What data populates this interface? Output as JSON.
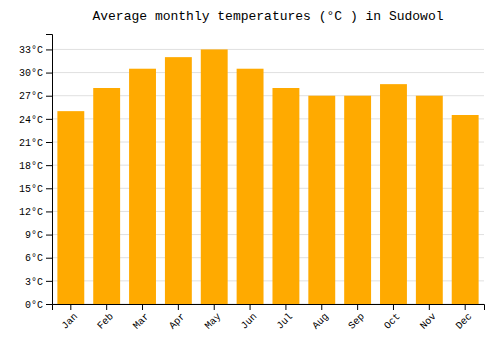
{
  "chart_data": {
    "type": "bar",
    "title": "Average monthly temperatures (°C ) in Sudowol",
    "categories": [
      "Jan",
      "Feb",
      "Mar",
      "Apr",
      "May",
      "Jun",
      "Jul",
      "Aug",
      "Sep",
      "Oct",
      "Nov",
      "Dec"
    ],
    "values": [
      25.0,
      28.0,
      30.5,
      32.0,
      33.0,
      30.5,
      28.0,
      27.0,
      27.0,
      28.5,
      27.0,
      24.5
    ],
    "color": "#FFAA00",
    "ylim": [
      0,
      35
    ],
    "yticks": [
      {
        "value": 0,
        "label": "0°C"
      },
      {
        "value": 3,
        "label": "3°C"
      },
      {
        "value": 6,
        "label": "6°C"
      },
      {
        "value": 9,
        "label": "9°C"
      },
      {
        "value": 12,
        "label": "12°C"
      },
      {
        "value": 15,
        "label": "15°C"
      },
      {
        "value": 18,
        "label": "18°C"
      },
      {
        "value": 21,
        "label": "21°C"
      },
      {
        "value": 24,
        "label": "24°C"
      },
      {
        "value": 27,
        "label": "27°C"
      },
      {
        "value": 30,
        "label": "30°C"
      },
      {
        "value": 33,
        "label": "33°C"
      }
    ],
    "grid": true
  }
}
